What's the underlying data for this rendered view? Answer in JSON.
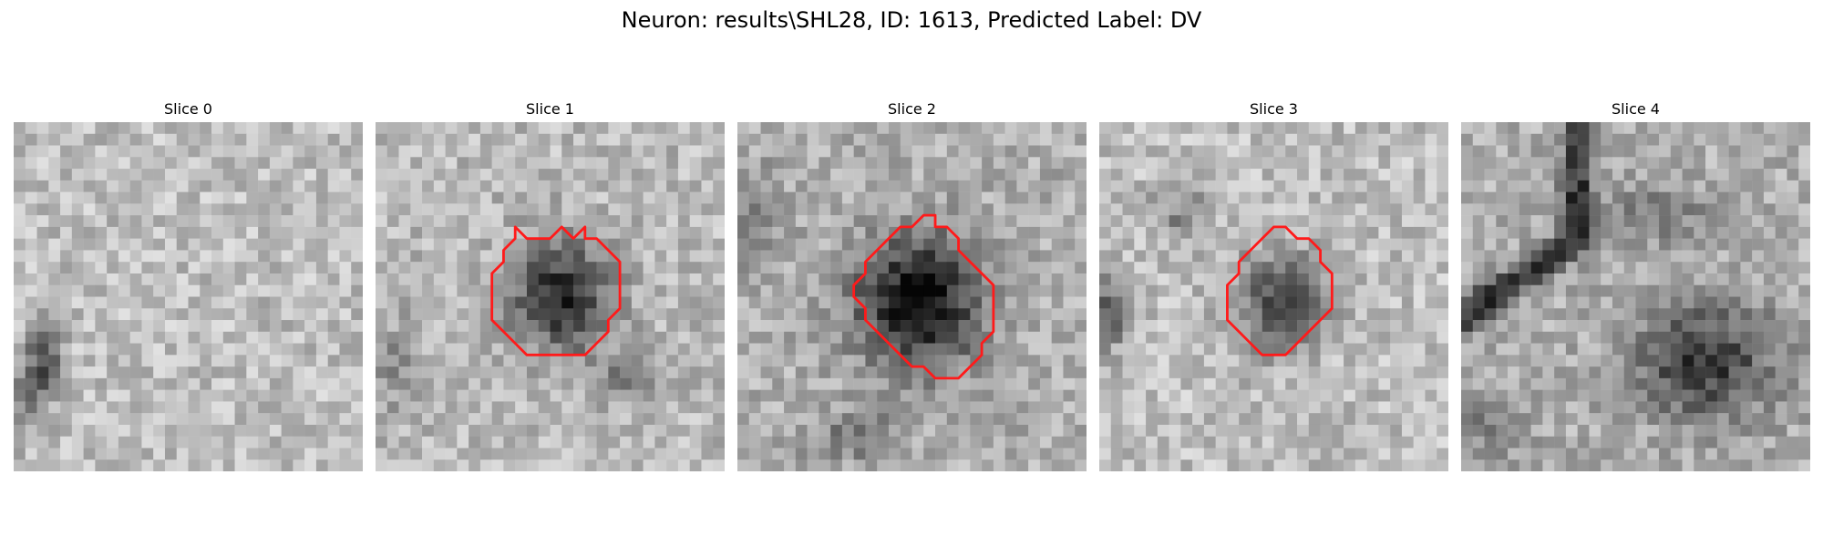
{
  "figure": {
    "title": "Neuron: results\\SHL28, ID: 1613, Predicted Label: DV"
  },
  "contour_color": "#ff1a1a",
  "panels": [
    {
      "title": "Slice 0",
      "has_contour": false
    },
    {
      "title": "Slice 1",
      "has_contour": true
    },
    {
      "title": "Slice 2",
      "has_contour": true
    },
    {
      "title": "Slice 3",
      "has_contour": true
    },
    {
      "title": "Slice 4",
      "has_contour": false
    }
  ]
}
